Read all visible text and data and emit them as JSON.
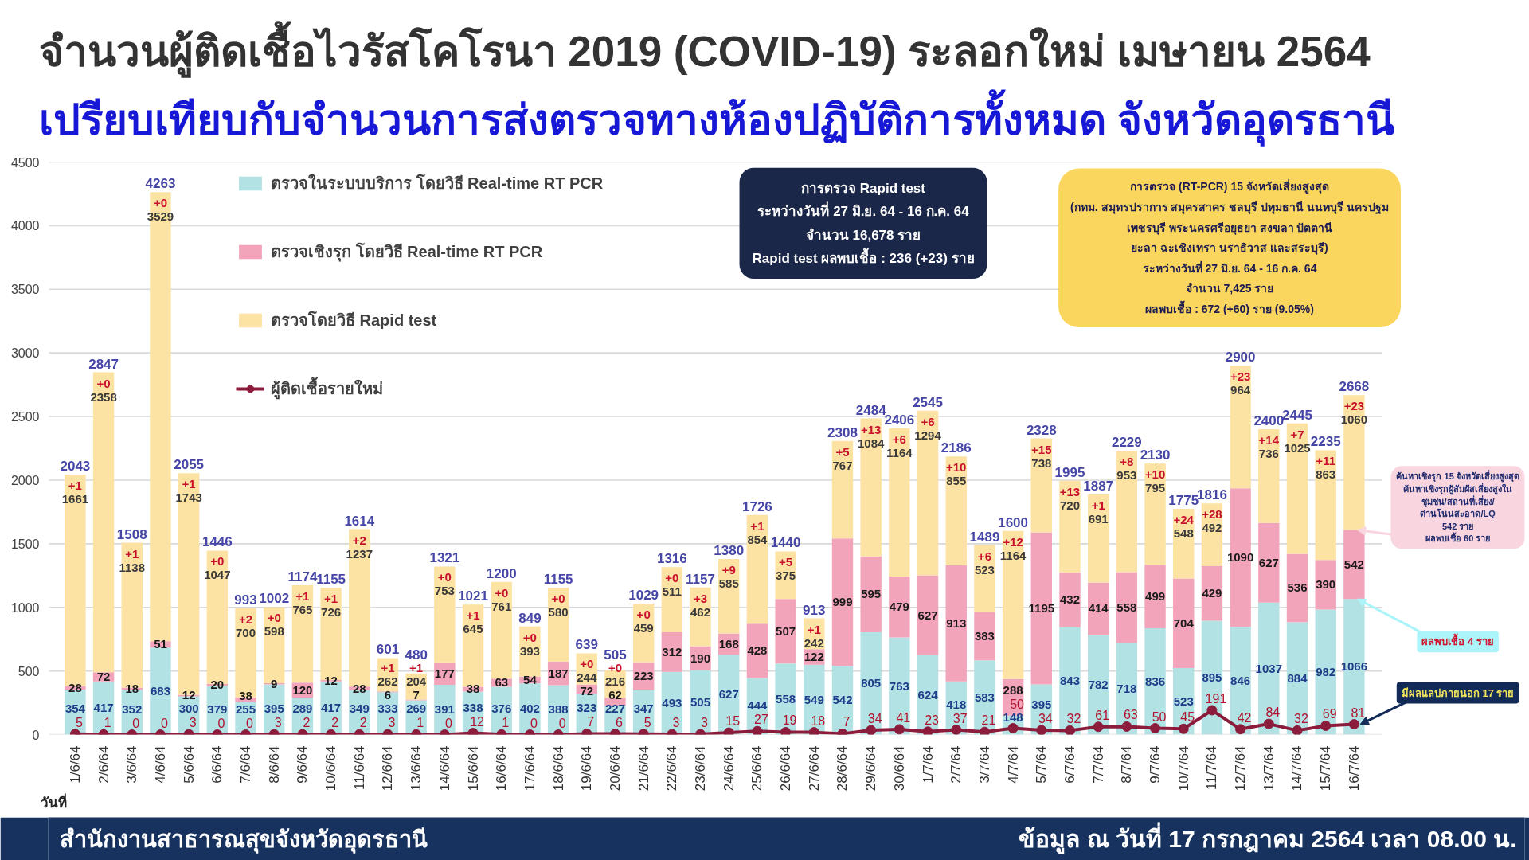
{
  "chart_data": {
    "type": "bar",
    "title": "จำนวนผู้ติดเชื้อไวรัสโคโรนา 2019 (COVID-19) ระลอกใหม่ เมษายน 2564",
    "subtitle": "เปรียบเทียบกับจำนวนการส่งตรวจทางห้องปฏิบัติการทั้งหมด จังหวัดอุดรธานี",
    "xlabel": "วันที่",
    "categories": [
      "1/6/64",
      "2/6/64",
      "3/6/64",
      "4/6/64",
      "5/6/64",
      "6/6/64",
      "7/6/64",
      "8/6/64",
      "9/6/64",
      "10/6/64",
      "11/6/64",
      "12/6/64",
      "13/6/64",
      "14/6/64",
      "15/6/64",
      "16/6/64",
      "17/6/64",
      "18/6/64",
      "19/6/64",
      "20/6/64",
      "21/6/64",
      "22/6/64",
      "23/6/64",
      "24/6/64",
      "25/6/64",
      "26/6/64",
      "27/6/64",
      "28/6/64",
      "29/6/64",
      "30/6/64",
      "1/7/64",
      "2/7/64",
      "3/7/64",
      "4/7/64",
      "5/7/64",
      "6/7/64",
      "7/7/64",
      "8/7/64",
      "9/7/64",
      "10/7/64",
      "11/7/64",
      "12/7/64",
      "13/7/64",
      "14/7/64",
      "15/7/64",
      "16/7/64"
    ],
    "stacked": true,
    "series": [
      {
        "name": "ตรวจในระบบบริการ โดยวิธี Real-time RT PCR",
        "color": "#b3e2e5",
        "values": [
          354,
          417,
          352,
          683,
          300,
          379,
          255,
          395,
          289,
          417,
          349,
          333,
          269,
          391,
          338,
          376,
          402,
          388,
          323,
          227,
          347,
          493,
          505,
          627,
          444,
          558,
          549,
          542,
          805,
          763,
          624,
          418,
          583,
          148,
          395,
          843,
          782,
          718,
          836,
          523,
          895,
          846,
          1037,
          884,
          982,
          1066
        ]
      },
      {
        "name": "ตรวจเชิงรุก โดยวิธี Real-time RT PCR",
        "color": "#f2a5ba",
        "values": [
          28,
          72,
          18,
          51,
          12,
          20,
          38,
          9,
          120,
          12,
          28,
          6,
          7,
          177,
          38,
          63,
          54,
          187,
          72,
          62,
          223,
          312,
          190,
          168,
          428,
          507,
          122,
          999,
          595,
          479,
          627,
          913,
          383,
          288,
          1195,
          432,
          414,
          558,
          499,
          704,
          429,
          1090,
          627,
          536,
          390,
          542
        ]
      },
      {
        "name": "ตรวจโดยวิธี Rapid test",
        "color": "#fde3a3",
        "values": [
          1661,
          2358,
          1138,
          3529,
          1743,
          1047,
          700,
          598,
          765,
          726,
          1237,
          262,
          204,
          753,
          645,
          761,
          393,
          580,
          244,
          216,
          459,
          511,
          462,
          585,
          854,
          375,
          242,
          767,
          1084,
          1164,
          1294,
          855,
          523,
          1164,
          738,
          720,
          691,
          953,
          795,
          548,
          492,
          964,
          736,
          1025,
          863,
          1060
        ]
      },
      {
        "name": "ผู้ติดเชื้อรายใหม่",
        "type": "line",
        "color": "#8c1c3c",
        "values": [
          5,
          1,
          0,
          0,
          3,
          0,
          0,
          3,
          2,
          2,
          2,
          3,
          1,
          0,
          12,
          1,
          0,
          0,
          7,
          6,
          5,
          3,
          3,
          15,
          27,
          19,
          18,
          7,
          34,
          41,
          23,
          37,
          21,
          50,
          34,
          32,
          61,
          63,
          50,
          45,
          191,
          42,
          84,
          32,
          69,
          81
        ]
      }
    ],
    "totals": [
      "2043",
      "2847",
      "1508",
      "4263",
      "2055",
      "1446",
      "993",
      "1002",
      "1174",
      "1155",
      "1614",
      "601",
      "480",
      "1321",
      "1021",
      "1200",
      "849",
      "1155",
      "639",
      "505",
      "1029",
      "1316",
      "1157",
      "1380",
      "1726",
      "1440",
      "913",
      "2308",
      "2484",
      "2406",
      "2545",
      "2186",
      "1489",
      "1600",
      "2328",
      "1995",
      "1887",
      "2229",
      "2130",
      "1775",
      "1816",
      "2900",
      "2400",
      "2445",
      "2235",
      "2668"
    ],
    "ylim": [
      0,
      4500
    ],
    "yticks": [
      0,
      500,
      1000,
      1500,
      2000,
      2500,
      3000,
      3500,
      4000,
      4500
    ],
    "grid": "y",
    "legend": "top left",
    "marker": "circle",
    "data_labels": true,
    "annotations": [
      {
        "text": "+1",
        "x": "1/6/64",
        "y": 2043
      },
      {
        "text": "+0",
        "x": "2/6/64",
        "y": 2847
      },
      {
        "text": "+1",
        "x": "3/6/64",
        "y": 1508
      },
      {
        "text": "+0",
        "x": "4/6/64",
        "y": 4263
      },
      {
        "text": "+1",
        "x": "5/6/64",
        "y": 2055
      },
      {
        "text": "+0",
        "x": "6/6/64",
        "y": 1446
      },
      {
        "text": "+2",
        "x": "7/6/64",
        "y": 993
      },
      {
        "text": "+0",
        "x": "8/6/64",
        "y": 1002
      },
      {
        "text": "+1",
        "x": "9/6/64",
        "y": 1174
      },
      {
        "text": "+1",
        "x": "10/6/64",
        "y": 1155
      },
      {
        "text": "+2",
        "x": "11/6/64",
        "y": 1614
      },
      {
        "text": "+1",
        "x": "12/6/64",
        "y": 601
      },
      {
        "text": "+1",
        "x": "13/6/64",
        "y": 480
      },
      {
        "text": "+0",
        "x": "14/6/64",
        "y": 1321
      },
      {
        "text": "+1",
        "x": "15/6/64",
        "y": 1021
      },
      {
        "text": "+0",
        "x": "16/6/64",
        "y": 1200
      },
      {
        "text": "+0",
        "x": "17/6/64",
        "y": 849
      },
      {
        "text": "+0",
        "x": "18/6/64",
        "y": 1155
      },
      {
        "text": "+0",
        "x": "19/6/64",
        "y": 639
      },
      {
        "text": "+0",
        "x": "20/6/64",
        "y": 505
      },
      {
        "text": "+0",
        "x": "21/6/64",
        "y": 1029
      },
      {
        "text": "+0",
        "x": "22/6/64",
        "y": 1316
      },
      {
        "text": "+3",
        "x": "23/6/64",
        "y": 1157
      },
      {
        "text": "+9",
        "x": "24/6/64",
        "y": 1380
      },
      {
        "text": "+1",
        "x": "25/6/64",
        "y": 1726
      },
      {
        "text": "+5",
        "x": "26/6/64",
        "y": 1440
      },
      {
        "text": "+1",
        "x": "27/6/64",
        "y": 913
      },
      {
        "text": "+5",
        "x": "28/6/64",
        "y": 2308
      },
      {
        "text": "+13",
        "x": "29/6/64",
        "y": 2484
      },
      {
        "text": "+6",
        "x": "30/6/64",
        "y": 2406
      },
      {
        "text": "+6",
        "x": "1/7/64",
        "y": 2545
      },
      {
        "text": "+10",
        "x": "2/7/64",
        "y": 2186
      },
      {
        "text": "+6",
        "x": "3/7/64",
        "y": 1489
      },
      {
        "text": "+12",
        "x": "4/7/64",
        "y": 1600
      },
      {
        "text": "+15",
        "x": "5/7/64",
        "y": 2328
      },
      {
        "text": "+13",
        "x": "6/7/64",
        "y": 1995
      },
      {
        "text": "+1",
        "x": "7/7/64",
        "y": 1887
      },
      {
        "text": "+8",
        "x": "8/7/64",
        "y": 2229
      },
      {
        "text": "+10",
        "x": "9/7/64",
        "y": 2130
      },
      {
        "text": "+24",
        "x": "10/7/64",
        "y": 1775
      },
      {
        "text": "+28",
        "x": "11/7/64",
        "y": 1816
      },
      {
        "text": "+23",
        "x": "12/7/64",
        "y": 2900
      },
      {
        "text": "+14",
        "x": "13/7/64",
        "y": 2400
      },
      {
        "text": "+7",
        "x": "14/7/64",
        "y": 2445
      },
      {
        "text": "+11",
        "x": "15/7/64",
        "y": 2235
      },
      {
        "text": "+23",
        "x": "16/7/64",
        "y": 2668
      },
      {
        "text": "ค้นหาเชิงรุก 15 จังหวัดเสี่ยงสูงสุด\nค้นหาเชิงรุกผู้สัมผัสเสี่ยงสูงใน\nชุมชน/สถานที่เสี่ยง/\nด่านโนนสะอาด/LQ\n542 ราย\nผลพบเชื้อ 60 ราย",
        "x": "16/7/64",
        "y": 1608
      },
      {
        "text": "ผลพบเชื้อ 4 ราย",
        "x": "16/7/64",
        "y": 1066
      },
      {
        "text": "มีผลแลปภายนอก 17 ราย",
        "x": "16/7/64",
        "y": 81
      },
      "การตรวจ Rapid test\nระหว่างวันที่ 27 มิ.ย. 64 - 16 ก.ค. 64\nจำนวน 16,678 ราย\nRapid test ผลพบเชื้อ : 236 (+23) ราย",
      "การตรวจ (RT-PCR) 15 จังหวัดเสี่ยงสูงสุด\n(กทม. สมุทรปราการ สมุครสาคร ชลบุรี ปทุมธานี นนทบุรี นครปฐม\nเพชรบุรี พระนครศรีอยุธยา สงขลา ปัตตานี\nยะลา ฉะเชิงเทรา นราธิวาส และสระบุรี)\nระหว่างวันที่ 27 มิ.ย. 64 - 16 ก.ค. 64\nจำนวน 7,425 ราย\nผลพบเชื้อ : 672 (+60) ราย (9.05%)",
      "สำนักงานสาธารณสุขจังหวัดอุดรธานี",
      "ข้อมูล ณ วันที่ 17 กรกฎาคม 2564 เวลา 08.00 น."
    ]
  }
}
